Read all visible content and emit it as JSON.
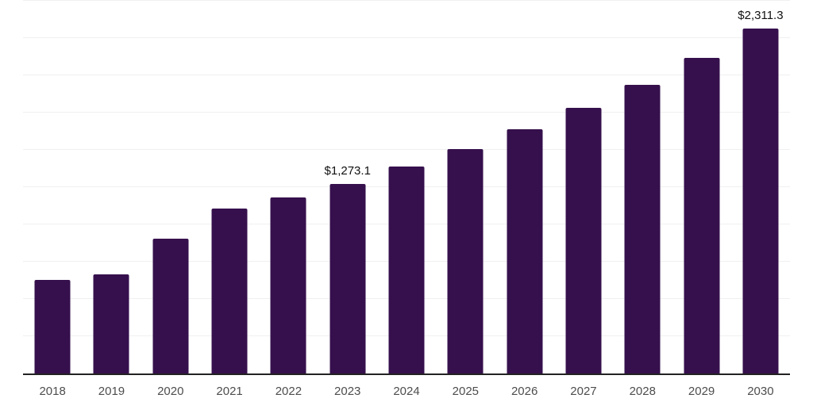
{
  "chart_data": {
    "type": "bar",
    "title": "",
    "xlabel": "",
    "ylabel": "",
    "categories": [
      "2018",
      "2019",
      "2020",
      "2021",
      "2022",
      "2023",
      "2024",
      "2025",
      "2026",
      "2027",
      "2028",
      "2029",
      "2030"
    ],
    "values": [
      626,
      667,
      904,
      1105,
      1180,
      1273.1,
      1386,
      1505,
      1638,
      1781,
      1937,
      2119,
      2311.3
    ],
    "data_labels": {
      "2023": "$1,273.1",
      "2030": "$2,311.3"
    },
    "ylim": [
      0,
      2500
    ],
    "gridline_interval": 250,
    "grid": true,
    "legend": "none",
    "y_axis_labels_visible": false
  },
  "style": {
    "background": "#ffffff",
    "bar_color": "#36104d",
    "gridline_color": "#f0f0f0",
    "axis_line_color": "#222222",
    "tick_label_color": "#4d4d4d",
    "data_label_color": "#111111"
  }
}
